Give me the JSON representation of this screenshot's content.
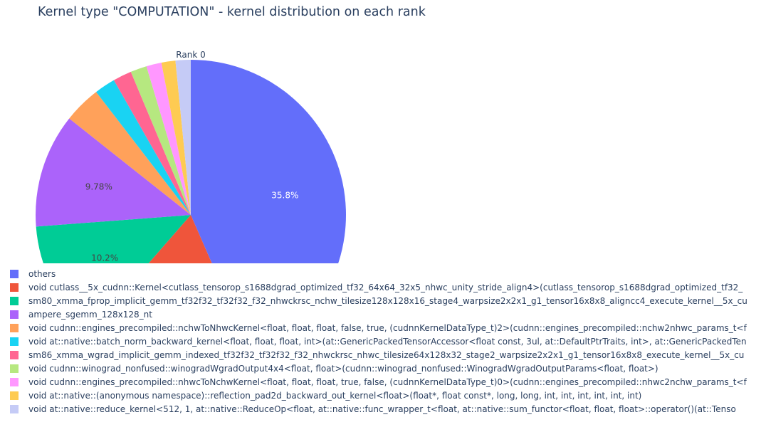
{
  "chart_data": {
    "type": "pie",
    "title": "Kernel type \"COMPUTATION\" - kernel distribution on each rank",
    "subplot_title": "Rank 0",
    "slices": [
      {
        "label": "others",
        "value": 35.8,
        "text": "35.8%",
        "color": "#636efa"
      },
      {
        "label": "void cutlass__5x_cudnn::Kernel<cutlass_tensorop_s1688dgrad_optimized_tf32_64x64_32x5_nhwc_unity_stride_align4>(cutlass_tensorop_s1688dgrad_optimized_tf32_",
        "value": 14.8,
        "text": "14.8%",
        "color": "#ef553b"
      },
      {
        "label": "sm80_xmma_fprop_implicit_gemm_tf32f32_tf32f32_f32_nhwckrsc_nchw_tilesize128x128x16_stage4_warpsize2x2x1_g1_tensor16x8x8_aligncc4_execute_kernel__5x_cu",
        "value": 10.2,
        "text": "10.2%",
        "color": "#00cc96"
      },
      {
        "label": "ampere_sgemm_128x128_nt",
        "value": 9.78,
        "text": "9.78%",
        "color": "#ab63fa"
      },
      {
        "label": "void cudnn::engines_precompiled::nchwToNhwcKernel<float, float, float, false, true, (cudnnKernelDataType_t)2>(cudnn::engines_precompiled::nchw2nhwc_params_t<f",
        "value": 3.2,
        "text": "",
        "color": "#ffa15a"
      },
      {
        "label": "void at::native::batch_norm_backward_kernel<float, float, float, int>(at::GenericPackedTensorAccessor<float const, 3ul, at::DefaultPtrTraits, int>, at::GenericPackedTen",
        "value": 1.8,
        "text": "",
        "color": "#19d3f3"
      },
      {
        "label": "sm86_xmma_wgrad_implicit_gemm_indexed_tf32f32_tf32f32_f32_nhwckrsc_nhwc_tilesize64x128x32_stage2_warpsize2x2x1_g1_tensor16x8x8_execute_kernel__5x_cu",
        "value": 1.6,
        "text": "",
        "color": "#ff6692"
      },
      {
        "label": "void cudnn::winograd_nonfused::winogradWgradOutput4x4<float, float>(cudnn::winograd_nonfused::WinogradWgradOutputParams<float, float>)",
        "value": 1.4,
        "text": "",
        "color": "#b6e880"
      },
      {
        "label": "void cudnn::engines_precompiled::nhwcToNchwKernel<float, float, float, true, false, (cudnnKernelDataType_t)0>(cudnn::engines_precompiled::nhwc2nchw_params_t<f",
        "value": 1.3,
        "text": "",
        "color": "#ff97ff"
      },
      {
        "label": "void at::native::(anonymous namespace)::reflection_pad2d_backward_out_kernel<float>(float*, float const*, long, long, int, int, int, int, int, int)",
        "value": 1.2,
        "text": "",
        "color": "#fecb52"
      },
      {
        "label": "void at::native::reduce_kernel<512, 1, at::native::ReduceOp<float, at::native::func_wrapper_t<float, at::native::sum_functor<float, float, float>::operator()(at::Tenso",
        "value": 1.3,
        "text": "",
        "color": "#c5cbf6"
      }
    ],
    "legend_position": "bottom"
  }
}
